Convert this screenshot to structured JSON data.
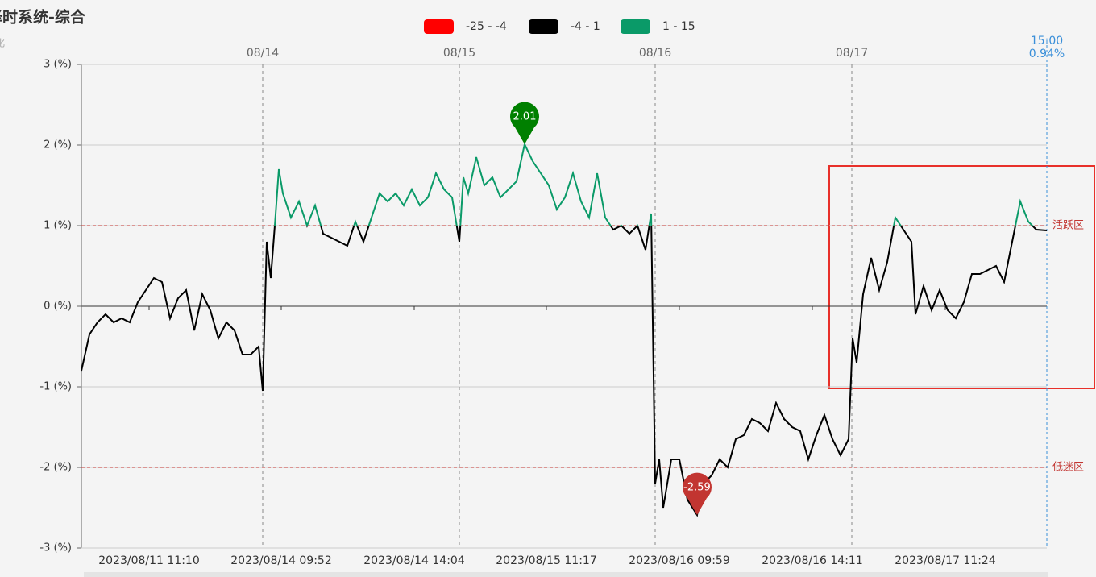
{
  "chart_data": {
    "type": "line",
    "title": "择时系统-综合",
    "subtitle": "化",
    "x": [
      0,
      10,
      20,
      30,
      40,
      50,
      60,
      70,
      80,
      90,
      100,
      110,
      120,
      130,
      140,
      150,
      160,
      170,
      180,
      190,
      200,
      210,
      220,
      225,
      230,
      235,
      240,
      245,
      250,
      260,
      270,
      280,
      290,
      300,
      310,
      320,
      330,
      340,
      350,
      360,
      370,
      380,
      390,
      400,
      410,
      420,
      430,
      440,
      450,
      460,
      469,
      474,
      480,
      490,
      500,
      510,
      520,
      530,
      540,
      550,
      560,
      570,
      580,
      590,
      600,
      610,
      620,
      630,
      640,
      650,
      660,
      670,
      680,
      690,
      700,
      707,
      712,
      717,
      722,
      732,
      742,
      752,
      764,
      772,
      782,
      792,
      802,
      812,
      822,
      832,
      842,
      852,
      862,
      872,
      882,
      892,
      902,
      912,
      922,
      932,
      942,
      952,
      957,
      962,
      970,
      980,
      990,
      1000,
      1010,
      1020,
      1030,
      1035,
      1045,
      1055,
      1065,
      1075,
      1085,
      1095,
      1105,
      1115,
      1125,
      1135,
      1145,
      1155,
      1165,
      1175,
      1185,
      1198
    ],
    "values": [
      -0.8,
      -0.35,
      -0.2,
      -0.1,
      -0.2,
      -0.15,
      -0.2,
      0.05,
      0.2,
      0.35,
      0.3,
      -0.15,
      0.1,
      0.2,
      -0.3,
      0.15,
      -0.05,
      -0.4,
      -0.2,
      -0.3,
      -0.6,
      -0.6,
      -0.5,
      -1.05,
      0.8,
      0.35,
      1.0,
      1.7,
      1.4,
      1.1,
      1.3,
      1.0,
      1.25,
      0.9,
      0.85,
      0.8,
      0.75,
      1.05,
      0.8,
      1.1,
      1.4,
      1.3,
      1.4,
      1.25,
      1.45,
      1.25,
      1.35,
      1.65,
      1.45,
      1.35,
      0.8,
      1.6,
      1.4,
      1.85,
      1.5,
      1.6,
      1.35,
      1.45,
      1.55,
      2.01,
      1.8,
      1.65,
      1.5,
      1.2,
      1.35,
      1.65,
      1.3,
      1.1,
      1.65,
      1.1,
      0.95,
      1.0,
      0.9,
      1.0,
      0.7,
      1.15,
      -2.2,
      -1.9,
      -2.5,
      -1.9,
      -1.9,
      -2.4,
      -2.59,
      -2.2,
      -2.1,
      -1.9,
      -2.0,
      -1.65,
      -1.6,
      -1.4,
      -1.45,
      -1.55,
      -1.2,
      -1.4,
      -1.5,
      -1.55,
      -1.9,
      -1.6,
      -1.35,
      -1.65,
      -1.85,
      -1.65,
      -0.4,
      -0.7,
      0.15,
      0.6,
      0.2,
      0.55,
      1.1,
      0.95,
      0.8,
      -0.1,
      0.25,
      -0.05,
      0.2,
      -0.05,
      -0.15,
      0.05,
      0.4,
      0.4,
      0.45,
      0.5,
      0.3,
      0.8,
      1.3,
      1.05,
      0.95,
      0.94
    ],
    "xlim": [
      0,
      1198
    ],
    "xticks": [
      {
        "value": 84,
        "label": "2023/08/11 11:10"
      },
      {
        "value": 248,
        "label": "2023/08/14 09:52"
      },
      {
        "value": 413,
        "label": "2023/08/14 14:04"
      },
      {
        "value": 577,
        "label": "2023/08/15 11:17"
      },
      {
        "value": 742,
        "label": "2023/08/16 09:59"
      },
      {
        "value": 907,
        "label": "2023/08/16 14:11"
      },
      {
        "value": 1072,
        "label": "2023/08/17 11:24"
      }
    ],
    "day_ticks": [
      {
        "value": 225,
        "label": "08/14"
      },
      {
        "value": 469,
        "label": "08/15"
      },
      {
        "value": 712,
        "label": "08/16"
      },
      {
        "value": 956,
        "label": "08/17"
      }
    ],
    "ylim": [
      -3,
      3
    ],
    "yticks": [
      {
        "value": 3,
        "label": "3 (%)"
      },
      {
        "value": 2,
        "label": "2 (%)"
      },
      {
        "value": 1,
        "label": "1 (%)"
      },
      {
        "value": 0,
        "label": "0 (%)"
      },
      {
        "value": -1,
        "label": "-1 (%)"
      },
      {
        "value": -2,
        "label": "-2 (%)"
      },
      {
        "value": -3,
        "label": "-3 (%)"
      }
    ],
    "grid": true,
    "end_time": "15:00",
    "end_label": "0.94%",
    "mark_lines": [
      {
        "value": 1,
        "label": "活跃区"
      },
      {
        "value": -2,
        "label": "低迷区"
      }
    ],
    "pieces": [
      {
        "min": -25,
        "max": -4,
        "label": "-25 - -4",
        "color": "#ff0000"
      },
      {
        "min": -4,
        "max": 1,
        "label": "-4 - 1",
        "color": "#000000"
      },
      {
        "min": 1,
        "max": 15,
        "label": "1 - 15",
        "color": "#0a9a68"
      }
    ]
  }
}
